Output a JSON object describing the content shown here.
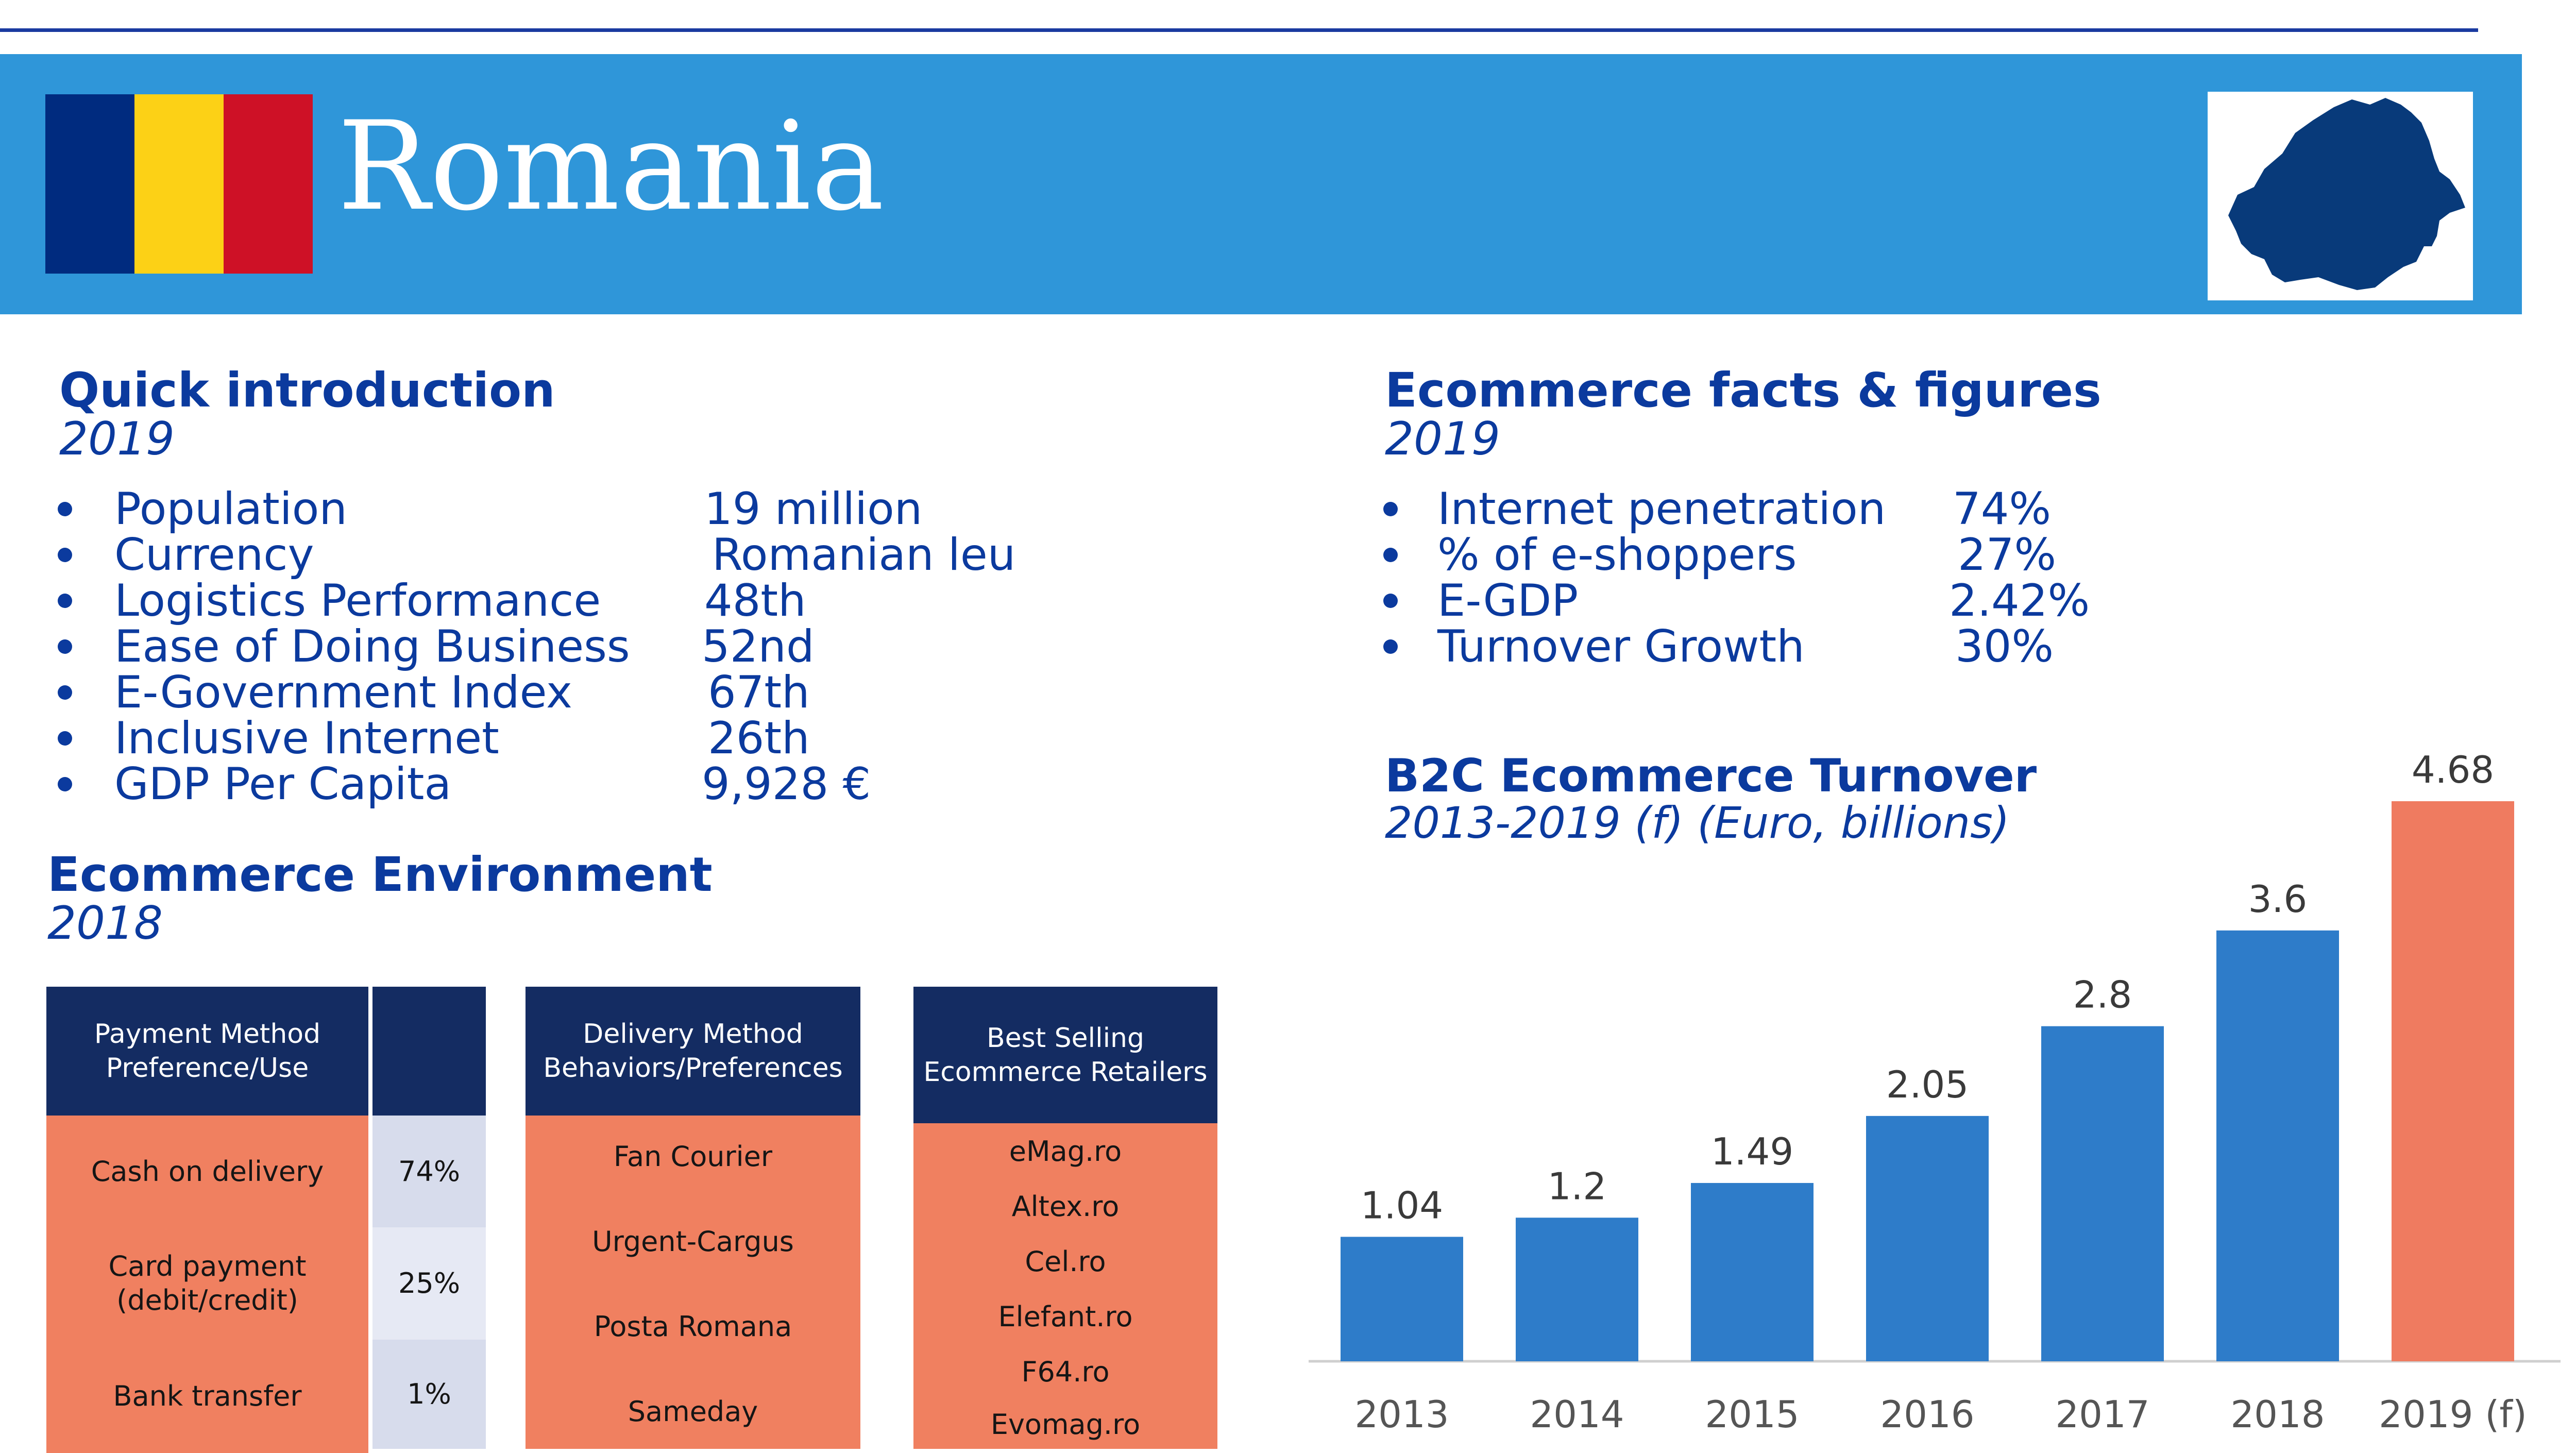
{
  "header": {
    "country": "Romania",
    "flag_colors": [
      "#002b7f",
      "#fcd116",
      "#ce1126"
    ],
    "map_color": "#083a7a"
  },
  "intro": {
    "title": "Quick introduction",
    "year": "2019",
    "items": [
      {
        "label": "Population",
        "value": "19 million"
      },
      {
        "label": "Currency",
        "value": "Romanian leu"
      },
      {
        "label": "Logistics Performance",
        "value": "48th"
      },
      {
        "label": "Ease of Doing Business",
        "value": "52nd"
      },
      {
        "label": "E-Government Index",
        "value": "67th"
      },
      {
        "label": "Inclusive Internet",
        "value": "26th"
      },
      {
        "label": "GDP Per Capita",
        "value": "9,928 €"
      }
    ]
  },
  "facts": {
    "title": "Ecommerce facts & figures",
    "year": "2019",
    "items": [
      {
        "label": "Internet penetration",
        "value": "74%"
      },
      {
        "label": "% of e-shoppers",
        "value": "27%"
      },
      {
        "label": "E-GDP",
        "value": "2.42%"
      },
      {
        "label": "Turnover Growth",
        "value": "30%"
      }
    ]
  },
  "environment": {
    "title": "Ecommerce Environment",
    "year": "2018",
    "payment": {
      "header_line1": "Payment Method",
      "header_line2": "Preference/Use",
      "rows": [
        {
          "label_line1": "Cash on delivery",
          "label_line2": "",
          "value": "74%"
        },
        {
          "label_line1": "Card payment",
          "label_line2": "(debit/credit)",
          "value": "25%"
        },
        {
          "label_line1": "Bank transfer",
          "label_line2": "",
          "value": "1%"
        }
      ]
    },
    "delivery": {
      "header_line1": "Delivery Method",
      "header_line2": "Behaviors/Preferences",
      "rows": [
        "Fan Courier",
        "Urgent-Cargus",
        "Posta Romana",
        "Sameday"
      ]
    },
    "retailers": {
      "header_line1": "Best Selling",
      "header_line2": "Ecommerce Retailers",
      "rows": [
        "eMag.ro",
        "Altex.ro",
        "Cel.ro",
        "Elefant.ro",
        "F64.ro",
        "Evomag.ro"
      ]
    }
  },
  "turnover": {
    "title": "B2C Ecommerce Turnover",
    "subtitle": "2013-2019 (f) (Euro, billions)"
  },
  "chart_data": {
    "type": "bar",
    "title": "B2C Ecommerce Turnover",
    "subtitle": "2013-2019 (f) (Euro, billions)",
    "categories": [
      "2013",
      "2014",
      "2015",
      "2016",
      "2017",
      "2018",
      "2019 (f)"
    ],
    "values": [
      1.04,
      1.2,
      1.49,
      2.05,
      2.8,
      3.6,
      4.68
    ],
    "value_labels": [
      "1.04",
      "1.2",
      "1.49",
      "2.05",
      "2.8",
      "3.6",
      "4.68"
    ],
    "ylim": [
      0,
      4.68
    ],
    "colors": [
      "#2e7cc9",
      "#2e7cc9",
      "#2e7cc9",
      "#2e7cc9",
      "#2e7cc9",
      "#2e7cc9",
      "#ef7b60"
    ],
    "grid": false,
    "legend": "none"
  }
}
